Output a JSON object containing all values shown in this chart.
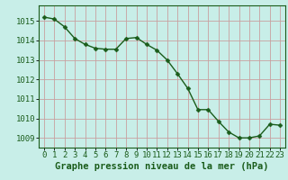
{
  "x": [
    0,
    1,
    2,
    3,
    4,
    5,
    6,
    7,
    8,
    9,
    10,
    11,
    12,
    13,
    14,
    15,
    16,
    17,
    18,
    19,
    20,
    21,
    22,
    23
  ],
  "y": [
    1015.2,
    1015.1,
    1014.7,
    1014.1,
    1013.8,
    1013.6,
    1013.55,
    1013.55,
    1014.1,
    1014.15,
    1013.8,
    1013.5,
    1013.0,
    1012.3,
    1011.55,
    1010.45,
    1010.45,
    1009.85,
    1009.3,
    1009.0,
    1009.0,
    1009.1,
    1009.7,
    1009.65
  ],
  "line_color": "#1a5c1a",
  "marker": "D",
  "marker_size": 2.5,
  "line_width": 1.0,
  "background_color": "#c8eee8",
  "grid_color_major": "#c8a0a0",
  "grid_color_minor": "#c8a0a0",
  "xlabel": "Graphe pression niveau de la mer (hPa)",
  "xlabel_color": "#1a5c1a",
  "xlabel_fontsize": 7.5,
  "tick_label_color": "#1a5c1a",
  "tick_fontsize": 6.5,
  "ylim": [
    1008.5,
    1015.8
  ],
  "yticks": [
    1009,
    1010,
    1011,
    1012,
    1013,
    1014,
    1015
  ],
  "xlim": [
    -0.5,
    23.5
  ],
  "xticks": [
    0,
    1,
    2,
    3,
    4,
    5,
    6,
    7,
    8,
    9,
    10,
    11,
    12,
    13,
    14,
    15,
    16,
    17,
    18,
    19,
    20,
    21,
    22,
    23
  ]
}
